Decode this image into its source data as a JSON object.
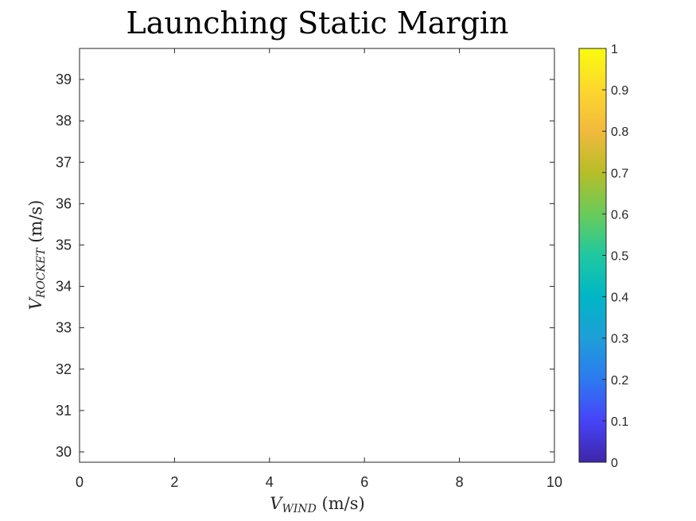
{
  "chart_data": {
    "type": "heatmap",
    "title": "Launching Static Margin",
    "xlabel": {
      "main": "V",
      "sub": "WIND",
      "unit": " (m/s)"
    },
    "ylabel": {
      "main": "V",
      "sub": "ROCKET",
      "unit": " (m/s)"
    },
    "xlim": [
      0,
      10
    ],
    "ylim": [
      29.75,
      39.75
    ],
    "xticks": [
      0,
      2,
      4,
      6,
      8,
      10
    ],
    "yticks": [
      30,
      31,
      32,
      33,
      34,
      35,
      36,
      37,
      38,
      39
    ],
    "values": [],
    "grid": false,
    "colorbar": {
      "colormap": "parula",
      "range": [
        0,
        1
      ],
      "ticks": [
        "0",
        "0.1",
        "0.2",
        "0.3",
        "0.4",
        "0.5",
        "0.6",
        "0.7",
        "0.8",
        "0.9",
        "1"
      ],
      "stops": [
        "#3e26a8",
        "#4743f8",
        "#2d7af0",
        "#1e9fd8",
        "#00b6c6",
        "#1fc8a0",
        "#69cb5a",
        "#b6bd28",
        "#f2b93c",
        "#fcd72e",
        "#f9fb0e"
      ]
    }
  }
}
